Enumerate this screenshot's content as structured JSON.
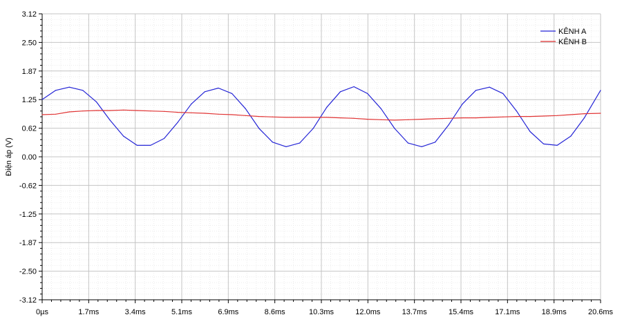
{
  "chart_data": {
    "type": "line",
    "title": "",
    "xlabel": "",
    "ylabel": "Điện áp (V)",
    "xlim": [
      0,
      20.6
    ],
    "ylim": [
      -3.12,
      3.12
    ],
    "x_ticks": [
      "0µs",
      "1.7ms",
      "3.4ms",
      "5.1ms",
      "6.9ms",
      "8.6ms",
      "10.3ms",
      "12.0ms",
      "13.7ms",
      "15.4ms",
      "17.1ms",
      "18.9ms",
      "20.6ms"
    ],
    "y_ticks": [
      "3.12",
      "2.50",
      "1.87",
      "1.25",
      "0.62",
      "0.00",
      "-0.62",
      "-1.25",
      "-1.87",
      "-2.50",
      "-3.12"
    ],
    "grid": true,
    "legend_position": "top-right",
    "series": [
      {
        "name": "KÊNH A",
        "color": "#2323d6",
        "x": [
          0,
          0.5,
          1.0,
          1.5,
          2.0,
          2.5,
          3.0,
          3.5,
          4.0,
          4.5,
          5.0,
          5.5,
          6.0,
          6.5,
          7.0,
          7.5,
          8.0,
          8.5,
          9.0,
          9.5,
          10.0,
          10.5,
          11.0,
          11.5,
          12.0,
          12.5,
          13.0,
          13.5,
          14.0,
          14.5,
          15.0,
          15.5,
          16.0,
          16.5,
          17.0,
          17.5,
          18.0,
          18.5,
          19.0,
          19.5,
          20.0,
          20.6
        ],
        "values": [
          1.25,
          1.45,
          1.52,
          1.45,
          1.2,
          0.8,
          0.45,
          0.25,
          0.25,
          0.4,
          0.75,
          1.15,
          1.42,
          1.5,
          1.38,
          1.05,
          0.62,
          0.32,
          0.22,
          0.3,
          0.62,
          1.08,
          1.42,
          1.53,
          1.38,
          1.05,
          0.62,
          0.3,
          0.22,
          0.32,
          0.7,
          1.15,
          1.45,
          1.52,
          1.38,
          1.0,
          0.55,
          0.28,
          0.25,
          0.45,
          0.85,
          1.45
        ]
      },
      {
        "name": "KÊNH B",
        "color": "#e03232",
        "x": [
          0,
          0.5,
          1.0,
          1.5,
          2.0,
          2.5,
          3.0,
          3.5,
          4.0,
          4.5,
          5.0,
          5.5,
          6.0,
          6.5,
          7.0,
          7.5,
          8.0,
          8.5,
          9.0,
          9.5,
          10.0,
          10.5,
          11.0,
          11.5,
          12.0,
          12.5,
          13.0,
          13.5,
          14.0,
          14.5,
          15.0,
          15.5,
          16.0,
          16.5,
          17.0,
          17.5,
          18.0,
          18.5,
          19.0,
          19.5,
          20.0,
          20.6
        ],
        "values": [
          0.92,
          0.93,
          0.98,
          1.0,
          1.01,
          1.01,
          1.02,
          1.01,
          1.0,
          0.99,
          0.97,
          0.96,
          0.95,
          0.93,
          0.92,
          0.9,
          0.88,
          0.87,
          0.86,
          0.86,
          0.86,
          0.86,
          0.85,
          0.84,
          0.82,
          0.81,
          0.8,
          0.81,
          0.82,
          0.83,
          0.84,
          0.85,
          0.85,
          0.86,
          0.87,
          0.88,
          0.88,
          0.89,
          0.9,
          0.92,
          0.94,
          0.95
        ]
      }
    ]
  }
}
